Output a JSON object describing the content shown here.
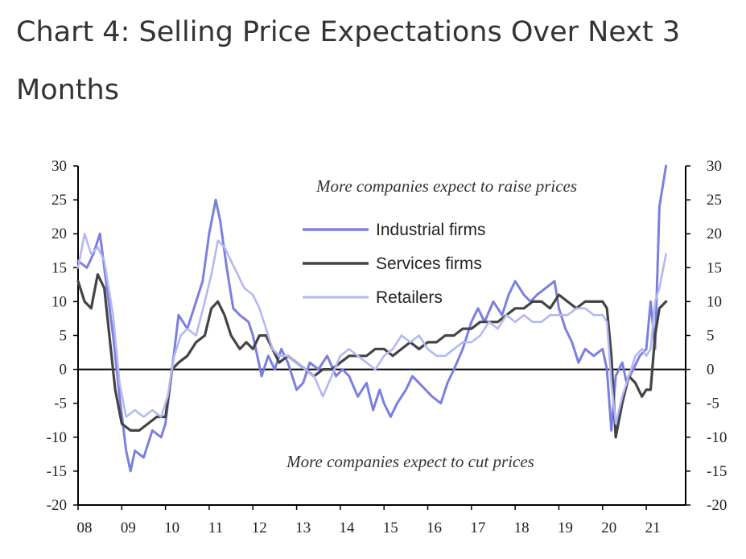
{
  "title": "Chart 4: Selling Price Expectations Over Next 3 Months",
  "chart_data": {
    "type": "line",
    "ylim": [
      -20,
      30
    ],
    "xlim": [
      2008,
      2021.9
    ],
    "yticks": [
      30,
      25,
      20,
      15,
      10,
      5,
      0,
      -5,
      -10,
      -15,
      -20
    ],
    "x_tick_labels": [
      "08",
      "09",
      "10",
      "11",
      "12",
      "13",
      "14",
      "15",
      "16",
      "17",
      "18",
      "19",
      "20",
      "21"
    ],
    "annotations": {
      "top": "More companies expect to raise prices",
      "bottom": "More companies expect to cut prices"
    },
    "legend_position": "upper-center",
    "series": [
      {
        "name": "Industrial firms",
        "color": "#7b7fe0",
        "width": 3,
        "x": [
          2008.0,
          2008.2,
          2008.35,
          2008.5,
          2008.6,
          2008.8,
          2008.95,
          2009.1,
          2009.2,
          2009.3,
          2009.5,
          2009.7,
          2009.9,
          2010.0,
          2010.15,
          2010.3,
          2010.5,
          2010.7,
          2010.85,
          2011.0,
          2011.15,
          2011.25,
          2011.4,
          2011.55,
          2011.7,
          2011.9,
          2012.0,
          2012.2,
          2012.35,
          2012.5,
          2012.65,
          2012.8,
          2013.0,
          2013.15,
          2013.3,
          2013.5,
          2013.7,
          2013.9,
          2014.05,
          2014.2,
          2014.4,
          2014.6,
          2014.75,
          2014.9,
          2015.0,
          2015.15,
          2015.3,
          2015.5,
          2015.65,
          2015.8,
          2015.95,
          2016.1,
          2016.3,
          2016.45,
          2016.6,
          2016.8,
          2017.0,
          2017.15,
          2017.3,
          2017.5,
          2017.7,
          2017.85,
          2018.0,
          2018.2,
          2018.35,
          2018.5,
          2018.7,
          2018.9,
          2019.0,
          2019.15,
          2019.3,
          2019.45,
          2019.6,
          2019.8,
          2020.0,
          2020.1,
          2020.2,
          2020.3,
          2020.45,
          2020.55,
          2020.7,
          2020.85,
          2021.0,
          2021.1,
          2021.2,
          2021.3,
          2021.45
        ],
        "y": [
          16,
          15,
          17,
          20,
          15,
          5,
          -4,
          -12,
          -15,
          -12,
          -13,
          -9,
          -10,
          -8,
          0,
          8,
          6,
          10,
          13,
          20,
          25,
          22,
          15,
          9,
          8,
          7,
          5,
          -1,
          2,
          0,
          3,
          1,
          -3,
          -2,
          1,
          0,
          2,
          -1,
          0,
          -1,
          -4,
          -2,
          -6,
          -3,
          -5,
          -7,
          -5,
          -3,
          -1,
          -2,
          -3,
          -4,
          -5,
          -2,
          0,
          3,
          7,
          9,
          7,
          10,
          8,
          11,
          13,
          11,
          10,
          11,
          12,
          13,
          9,
          6,
          4,
          1,
          3,
          2,
          3,
          0,
          -9,
          -1,
          1,
          -2,
          0,
          2,
          3,
          10,
          3,
          24,
          30
        ]
      },
      {
        "name": "Services firms",
        "color": "#444444",
        "width": 3.2,
        "x": [
          2008.0,
          2008.15,
          2008.3,
          2008.45,
          2008.6,
          2008.75,
          2008.85,
          2009.0,
          2009.2,
          2009.4,
          2009.6,
          2009.8,
          2010.0,
          2010.15,
          2010.3,
          2010.5,
          2010.7,
          2010.9,
          2011.05,
          2011.2,
          2011.35,
          2011.5,
          2011.7,
          2011.85,
          2012.0,
          2012.15,
          2012.3,
          2012.45,
          2012.6,
          2012.8,
          2013.0,
          2013.2,
          2013.4,
          2013.6,
          2013.8,
          2014.0,
          2014.2,
          2014.4,
          2014.6,
          2014.8,
          2015.0,
          2015.2,
          2015.4,
          2015.6,
          2015.8,
          2016.0,
          2016.2,
          2016.4,
          2016.6,
          2016.8,
          2017.0,
          2017.2,
          2017.4,
          2017.6,
          2017.8,
          2018.0,
          2018.2,
          2018.4,
          2018.6,
          2018.8,
          2019.0,
          2019.2,
          2019.4,
          2019.6,
          2019.8,
          2020.0,
          2020.1,
          2020.2,
          2020.3,
          2020.45,
          2020.6,
          2020.75,
          2020.9,
          2021.0,
          2021.1,
          2021.2,
          2021.3,
          2021.45
        ],
        "y": [
          13,
          10,
          9,
          14,
          12,
          3,
          -3,
          -8,
          -9,
          -9,
          -8,
          -7,
          -7,
          0,
          1,
          2,
          4,
          5,
          9,
          10,
          8,
          5,
          3,
          4,
          3,
          5,
          5,
          3,
          1,
          2,
          1,
          0,
          -1,
          0,
          0,
          1,
          2,
          2,
          2,
          3,
          3,
          2,
          3,
          4,
          3,
          4,
          4,
          5,
          5,
          6,
          6,
          7,
          7,
          7,
          8,
          9,
          9,
          10,
          10,
          9,
          11,
          10,
          9,
          10,
          10,
          10,
          9,
          2,
          -10,
          -5,
          -1,
          -2,
          -4,
          -3,
          -3,
          5,
          9,
          10
        ]
      },
      {
        "name": "Retailers",
        "color": "#b4b8f2",
        "width": 2.6,
        "x": [
          2008.0,
          2008.15,
          2008.3,
          2008.45,
          2008.6,
          2008.8,
          2008.95,
          2009.1,
          2009.3,
          2009.5,
          2009.7,
          2009.9,
          2010.05,
          2010.2,
          2010.35,
          2010.5,
          2010.7,
          2010.9,
          2011.05,
          2011.2,
          2011.35,
          2011.5,
          2011.65,
          2011.8,
          2012.0,
          2012.15,
          2012.3,
          2012.45,
          2012.6,
          2012.8,
          2013.0,
          2013.2,
          2013.4,
          2013.6,
          2013.8,
          2014.0,
          2014.2,
          2014.4,
          2014.6,
          2014.8,
          2015.0,
          2015.2,
          2015.4,
          2015.6,
          2015.8,
          2016.0,
          2016.2,
          2016.4,
          2016.6,
          2016.8,
          2017.0,
          2017.2,
          2017.4,
          2017.6,
          2017.8,
          2018.0,
          2018.2,
          2018.4,
          2018.6,
          2018.8,
          2019.0,
          2019.2,
          2019.4,
          2019.6,
          2019.8,
          2020.0,
          2020.1,
          2020.2,
          2020.3,
          2020.45,
          2020.6,
          2020.75,
          2020.9,
          2021.0,
          2021.1,
          2021.2,
          2021.3,
          2021.45
        ],
        "y": [
          15,
          20,
          17,
          18,
          16,
          8,
          -2,
          -7,
          -6,
          -7,
          -6,
          -7,
          -4,
          2,
          5,
          6,
          5,
          10,
          14,
          19,
          18,
          16,
          14,
          12,
          11,
          9,
          6,
          3,
          2,
          2,
          1,
          0,
          -1,
          -4,
          -1,
          2,
          3,
          2,
          1,
          0,
          2,
          3,
          5,
          4,
          5,
          3,
          2,
          2,
          3,
          4,
          4,
          5,
          7,
          6,
          8,
          7,
          8,
          7,
          7,
          8,
          8,
          8,
          9,
          9,
          8,
          8,
          7,
          -2,
          -8,
          -4,
          -1,
          2,
          3,
          2,
          3,
          10,
          12,
          17
        ]
      }
    ]
  }
}
